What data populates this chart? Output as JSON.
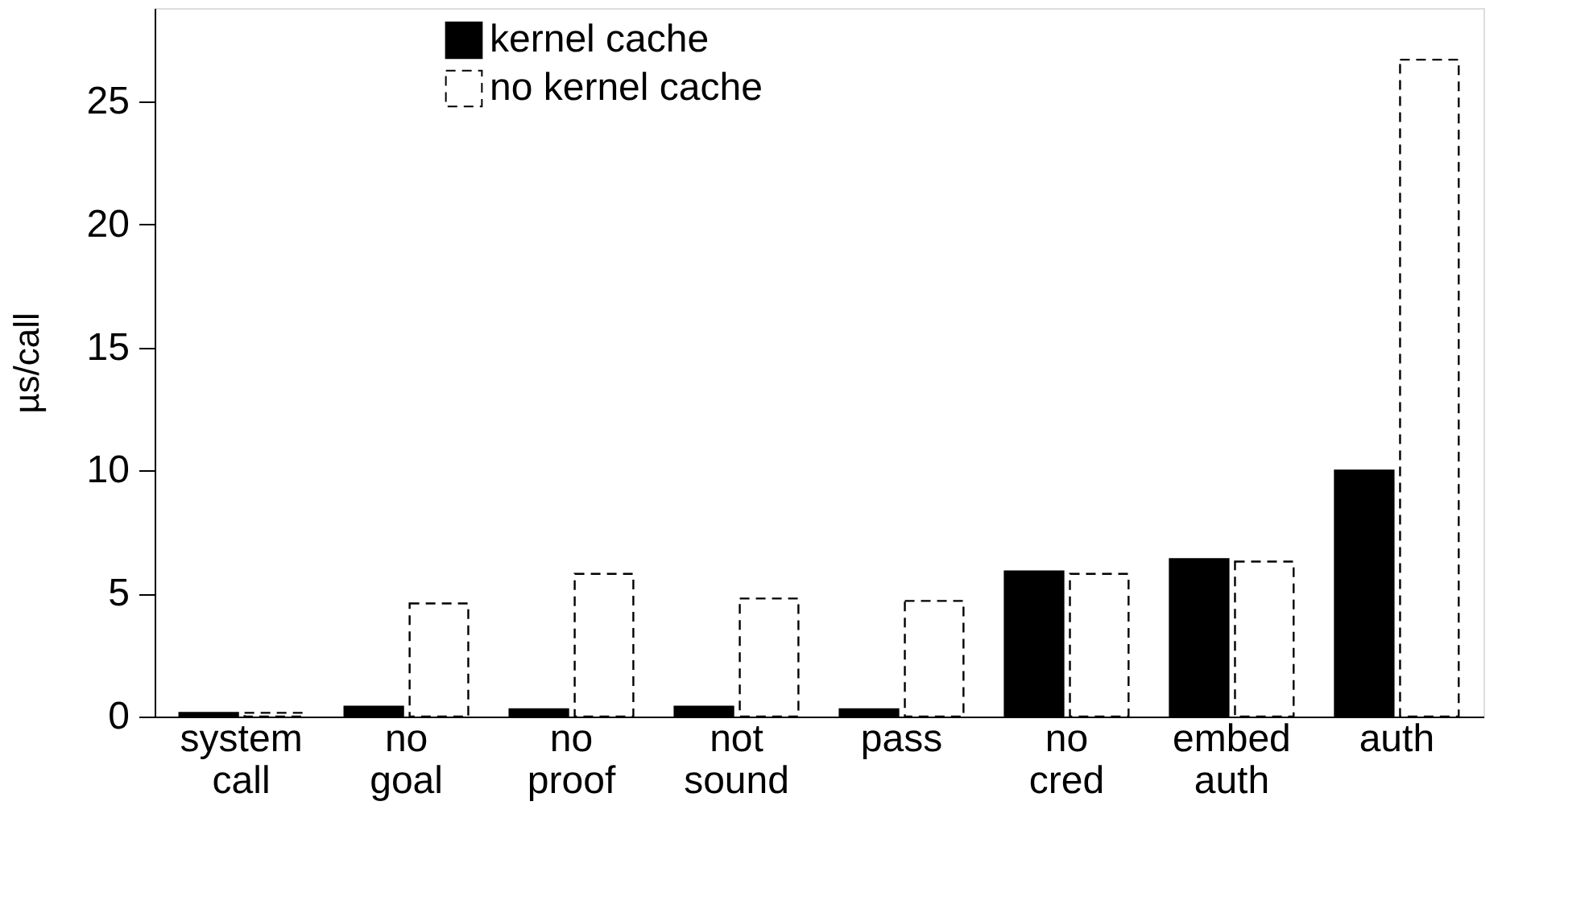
{
  "chart_data": {
    "type": "bar",
    "ylabel": "µs/call",
    "categories": [
      "system call",
      "no goal",
      "no proof",
      "not sound",
      "pass",
      "no cred",
      "embed auth",
      "auth"
    ],
    "series": [
      {
        "name": "kernel cache",
        "color": "#000000",
        "line_style": "solid",
        "values": [
          0.15,
          0.4,
          0.3,
          0.4,
          0.3,
          5.9,
          6.4,
          10.0
        ]
      },
      {
        "name": "no kernel cache",
        "color": "#ffffff",
        "line_style": "dashed",
        "values": [
          0.15,
          4.6,
          5.8,
          4.8,
          4.7,
          5.8,
          6.3,
          26.7
        ]
      }
    ],
    "ylim": [
      0,
      28.8
    ],
    "yticks": [
      0,
      5,
      10,
      15,
      20,
      25
    ],
    "grid": false,
    "legend": "top"
  }
}
